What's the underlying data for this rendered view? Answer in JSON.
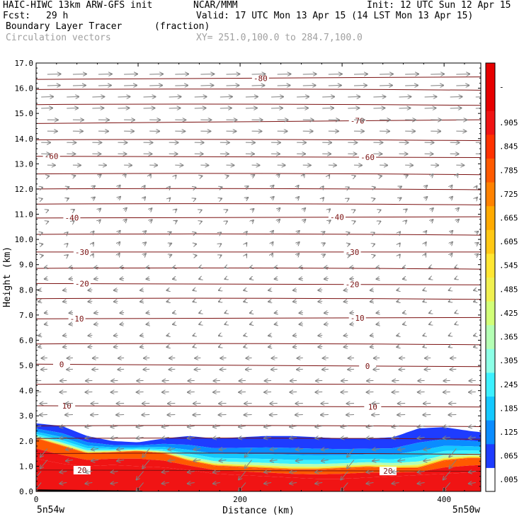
{
  "header": {
    "model": "HAIC-HIWC 13km ARW-GFS init",
    "org": "NCAR/MMM",
    "init": "Init: 12 UTC Sun 12 Apr 15",
    "fcst_label": "Fcst:",
    "fcst_value": "29 h",
    "valid": "Valid: 17 UTC Mon 13 Apr 15 (14 LST Mon 13 Apr 15)",
    "field": "Boundary Layer Tracer",
    "field_units": "(fraction)",
    "vectors": "Circulation vectors",
    "xy": "XY= 251.0,100.0 to 284.7,100.0"
  },
  "chart_data": {
    "type": "heatmap",
    "xlabel": "Distance (km)",
    "ylabel": "Height (km)",
    "xlim": [
      0,
      436
    ],
    "ylim": [
      0,
      17
    ],
    "x_ticks": [
      0,
      200,
      400
    ],
    "x_tick_labels": [
      "0",
      "200",
      "400"
    ],
    "y_ticks": [
      0,
      1,
      2,
      3,
      4,
      5,
      6,
      7,
      8,
      9,
      10,
      11,
      12,
      13,
      14,
      15,
      16,
      17
    ],
    "y_tick_labels": [
      "0.0",
      "1.0",
      "2.0",
      "3.0",
      "4.0",
      "5.0",
      "6.0",
      "7.0",
      "8.0",
      "9.0",
      "10.0",
      "11.0",
      "12.0",
      "13.0",
      "14.0",
      "15.0",
      "16.0",
      "17.0"
    ],
    "endpoint_labels": {
      "left": "5n54w",
      "right": "5n50w"
    },
    "colorbar": {
      "labels": [
        ".005",
        ".065",
        ".125",
        ".185",
        ".245",
        ".305",
        ".365",
        ".425",
        ".485",
        ".545",
        ".605",
        ".665",
        ".725",
        ".785",
        ".845",
        ".905",
        "-"
      ],
      "colors": [
        "#ffffff",
        "#1e3cff",
        "#0a8cff",
        "#14c8ff",
        "#3cf0ff",
        "#8cffe6",
        "#b4ffb4",
        "#d2ff78",
        "#f0f050",
        "#ffe632",
        "#ffc814",
        "#ffaa00",
        "#ff8200",
        "#ff5a00",
        "#ff3200",
        "#f01414",
        "#e60000",
        "#e60000"
      ]
    },
    "tracer_top_km": {
      "x": [
        0,
        25,
        50,
        75,
        100,
        125,
        150,
        175,
        200,
        225,
        250,
        275,
        300,
        325,
        350,
        375,
        400,
        425,
        436
      ],
      "top": [
        2.7,
        2.6,
        2.2,
        2.0,
        1.95,
        2.1,
        2.2,
        2.1,
        2.15,
        2.2,
        2.2,
        2.15,
        2.1,
        2.1,
        2.15,
        2.5,
        2.55,
        2.4,
        2.35
      ],
      "mixed_top": [
        2.1,
        1.8,
        1.5,
        1.55,
        1.6,
        1.5,
        1.2,
        1.0,
        0.95,
        0.9,
        0.85,
        0.85,
        0.9,
        0.95,
        0.9,
        0.9,
        1.2,
        1.3,
        1.3
      ],
      "red_top": [
        1.3,
        1.1,
        1.0,
        1.05,
        1.0,
        0.95,
        0.85,
        0.7,
        0.65,
        0.6,
        0.55,
        0.5,
        0.5,
        0.55,
        0.6,
        0.65,
        0.7,
        0.75,
        0.8
      ]
    },
    "isotherms": [
      {
        "label": "20",
        "y0": 0.85,
        "y1": 0.8,
        "lx": [
          45,
          345
        ]
      },
      {
        "label": "10",
        "y0": 3.4,
        "y1": 3.35,
        "lx": [
          30,
          330
        ]
      },
      {
        "label": "0",
        "y0": 5.05,
        "y1": 4.95,
        "lx": [
          25,
          325
        ]
      },
      {
        "label": "-10",
        "y0": 6.85,
        "y1": 6.9,
        "lx": [
          40,
          315
        ]
      },
      {
        "label": "-20",
        "y0": 8.25,
        "y1": 8.2,
        "lx": [
          45,
          310
        ]
      },
      {
        "label": "-30",
        "y0": 9.5,
        "y1": 9.5,
        "lx": [
          45,
          310
        ]
      },
      {
        "label": "-40",
        "y0": 10.85,
        "y1": 10.9,
        "lx": [
          35,
          295
        ]
      },
      {
        "label": "-60",
        "y0": 13.3,
        "y1": 13.25,
        "lx": [
          15,
          325
        ]
      },
      {
        "label": "-70",
        "y0": 14.6,
        "y1": 14.75,
        "lx": [
          315,
          315
        ]
      },
      {
        "label": "-80",
        "y0": 16.35,
        "y1": 16.45,
        "lx": [
          220,
          220
        ]
      }
    ],
    "extra_isotherm_levels": [
      1.5,
      2.1,
      2.6,
      4.25,
      5.85,
      7.65,
      8.85,
      10.2,
      11.4,
      12.0,
      12.6,
      13.95,
      15.35,
      15.95
    ]
  }
}
